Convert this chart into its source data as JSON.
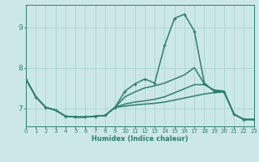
{
  "xlabel": "Humidex (Indice chaleur)",
  "x_values": [
    0,
    1,
    2,
    3,
    4,
    5,
    6,
    7,
    8,
    9,
    10,
    11,
    12,
    13,
    14,
    15,
    16,
    17,
    18,
    19,
    20,
    21,
    22,
    23
  ],
  "lines": [
    {
      "y": [
        7.72,
        7.28,
        7.02,
        6.95,
        6.8,
        6.78,
        6.78,
        6.8,
        6.82,
        7.02,
        7.42,
        7.6,
        7.72,
        7.62,
        8.55,
        9.22,
        9.32,
        8.9,
        7.62,
        7.42,
        7.4,
        6.85,
        6.72,
        6.72
      ],
      "color": "#2d7d6e",
      "lw": 1.1,
      "marker": "+"
    },
    {
      "y": [
        7.72,
        7.28,
        7.02,
        6.95,
        6.8,
        6.78,
        6.78,
        6.8,
        6.82,
        7.02,
        7.28,
        7.4,
        7.5,
        7.55,
        7.62,
        7.72,
        7.82,
        8.0,
        7.6,
        7.42,
        7.4,
        6.85,
        6.72,
        6.72
      ],
      "color": "#2d7d6e",
      "lw": 1.1,
      "marker": null
    },
    {
      "y": [
        7.72,
        7.28,
        7.02,
        6.95,
        6.8,
        6.78,
        6.78,
        6.8,
        6.82,
        7.02,
        7.1,
        7.15,
        7.18,
        7.22,
        7.28,
        7.38,
        7.48,
        7.58,
        7.58,
        7.45,
        7.42,
        6.85,
        6.72,
        6.72
      ],
      "color": "#2d7d6e",
      "lw": 1.1,
      "marker": null
    },
    {
      "y": [
        7.72,
        7.28,
        7.02,
        6.95,
        6.8,
        6.78,
        6.78,
        6.8,
        6.82,
        7.02,
        7.05,
        7.08,
        7.1,
        7.12,
        7.15,
        7.2,
        7.25,
        7.3,
        7.35,
        7.38,
        7.4,
        6.85,
        6.72,
        6.72
      ],
      "color": "#2d7d6e",
      "lw": 1.1,
      "marker": null
    }
  ],
  "bg_color": "#cce8e6",
  "grid_color": "#a8d4d0",
  "axis_color": "#2d7d6e",
  "tick_color": "#2d7d6e",
  "label_color": "#2d7d6e",
  "ylim": [
    6.55,
    9.55
  ],
  "yticks": [
    7,
    8,
    9
  ],
  "xlim": [
    0,
    23
  ],
  "xticks": [
    0,
    1,
    2,
    3,
    4,
    5,
    6,
    7,
    8,
    9,
    10,
    11,
    12,
    13,
    14,
    15,
    16,
    17,
    18,
    19,
    20,
    21,
    22,
    23
  ]
}
